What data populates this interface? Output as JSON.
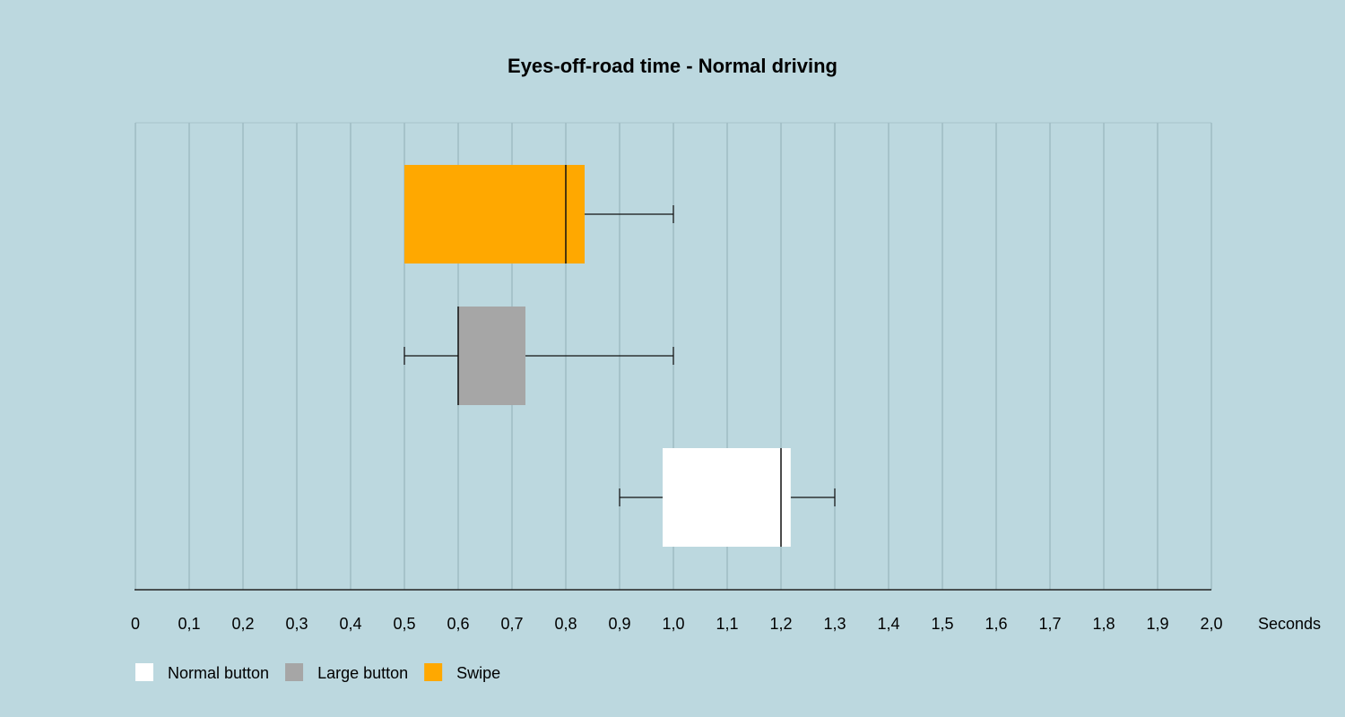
{
  "chart_data": {
    "type": "boxplot",
    "title": "Eyes-off-road time - Normal driving",
    "xlabel": "Seconds",
    "xlim": [
      0,
      2.0
    ],
    "x_ticks": [
      "0",
      "0,1",
      "0,2",
      "0,3",
      "0,4",
      "0,5",
      "0,6",
      "0,7",
      "0,8",
      "0,9",
      "1,0",
      "1,1",
      "1,2",
      "1,3",
      "1,4",
      "1,5",
      "1,6",
      "1,7",
      "1,8",
      "1,9",
      "2,0"
    ],
    "grid": true,
    "legend_position": "bottom-left",
    "series": [
      {
        "name": "Swipe",
        "color": "#ffa800",
        "min": 0.5,
        "q1": 0.5,
        "median": 0.8,
        "q3": 0.835,
        "max": 1.0
      },
      {
        "name": "Large button",
        "color": "#a6a6a6",
        "min": 0.5,
        "q1": 0.6,
        "median": 0.6,
        "q3": 0.725,
        "max": 1.0
      },
      {
        "name": "Normal button",
        "color": "#ffffff",
        "min": 0.9,
        "q1": 0.98,
        "median": 1.2,
        "q3": 1.218,
        "max": 1.3
      }
    ],
    "legend": [
      {
        "name": "Normal button",
        "color": "#ffffff"
      },
      {
        "name": "Large button",
        "color": "#a6a6a6"
      },
      {
        "name": "Swipe",
        "color": "#ffa800"
      }
    ]
  }
}
